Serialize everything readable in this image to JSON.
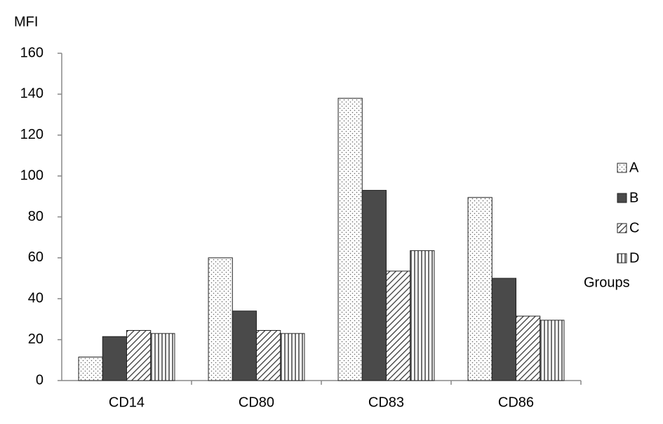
{
  "chart_data": {
    "type": "bar",
    "y_label": "MFI",
    "categories": [
      "CD14",
      "CD80",
      "CD83",
      "CD86"
    ],
    "series": [
      {
        "name": "A",
        "pattern": "dots",
        "color": "#ffffff",
        "values": [
          11.5,
          60,
          138,
          89.5
        ]
      },
      {
        "name": "B",
        "pattern": "solid",
        "color": "#4a4a4a",
        "values": [
          21.5,
          34,
          93,
          50
        ]
      },
      {
        "name": "C",
        "pattern": "diagonal",
        "color": "#ffffff",
        "values": [
          24.5,
          24.5,
          53.5,
          31.5
        ]
      },
      {
        "name": "D",
        "pattern": "vertical",
        "color": "#ffffff",
        "values": [
          23,
          23,
          63.5,
          29.5
        ]
      }
    ],
    "legend_title": "Groups",
    "legend_position": "right",
    "ylim": [
      0,
      160
    ],
    "yticks": [
      0,
      20,
      40,
      60,
      80,
      100,
      120,
      140,
      160
    ],
    "grid": false
  }
}
